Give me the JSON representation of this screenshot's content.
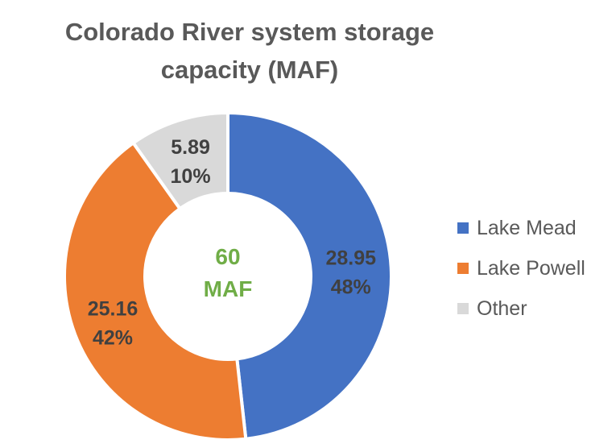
{
  "chart_data": {
    "type": "pie",
    "variant": "donut",
    "title": "Colorado River system storage capacity (MAF)",
    "title_lines": [
      "Colorado River system storage",
      "capacity (MAF)"
    ],
    "center_label": [
      "60",
      "MAF"
    ],
    "center_label_color": "#70AD47",
    "slices": [
      {
        "name": "Lake Mead",
        "value": 28.95,
        "percent": "48%",
        "color": "#4472C4"
      },
      {
        "name": "Lake Powell",
        "value": 25.16,
        "percent": "42%",
        "color": "#ED7D31"
      },
      {
        "name": "Other",
        "value": 5.89,
        "percent": "10%",
        "color": "#D9D9D9"
      }
    ],
    "legend_position": "right"
  }
}
